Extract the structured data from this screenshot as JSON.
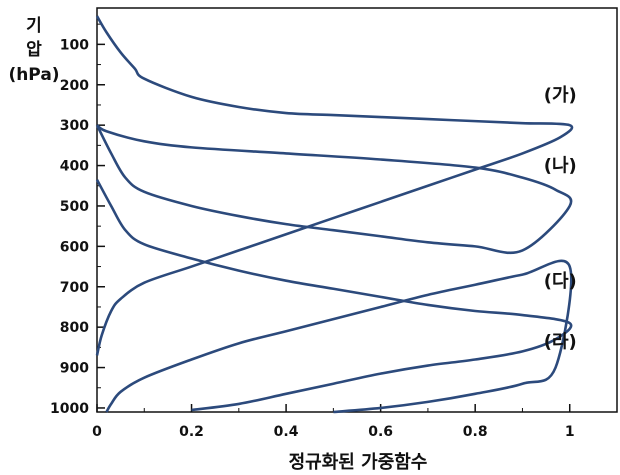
{
  "chart_data": {
    "type": "line",
    "title": "",
    "ylabel_lines": [
      "기",
      "압",
      "(hPa)"
    ],
    "xlabel": "정규화된 가중함수",
    "xlim": [
      0,
      1.1
    ],
    "ylim": [
      1010,
      10
    ],
    "xticks": [
      "0",
      "0.2",
      "0.4",
      "0.6",
      "0.8",
      "1"
    ],
    "xtick_values": [
      0,
      0.2,
      0.4,
      0.6,
      0.8,
      1
    ],
    "yticks": [
      "100",
      "200",
      "300",
      "400",
      "500",
      "600",
      "700",
      "800",
      "900",
      "1000"
    ],
    "ytick_values": [
      100,
      200,
      300,
      400,
      500,
      600,
      700,
      800,
      900,
      1000
    ],
    "grid": false,
    "series": [
      {
        "name": "(가)",
        "color": "#2c4a7c",
        "points": [
          [
            0,
            30
          ],
          [
            0.02,
            70
          ],
          [
            0.05,
            120
          ],
          [
            0.08,
            160
          ],
          [
            0.1,
            185
          ],
          [
            0.2,
            230
          ],
          [
            0.3,
            255
          ],
          [
            0.4,
            270
          ],
          [
            0.5,
            275
          ],
          [
            0.6,
            280
          ],
          [
            0.7,
            285
          ],
          [
            0.8,
            290
          ],
          [
            0.9,
            295
          ],
          [
            1.0,
            300
          ],
          [
            0.98,
            330
          ],
          [
            0.9,
            370
          ],
          [
            0.8,
            410
          ],
          [
            0.7,
            450
          ],
          [
            0.6,
            490
          ],
          [
            0.5,
            530
          ],
          [
            0.4,
            570
          ],
          [
            0.3,
            610
          ],
          [
            0.2,
            650
          ],
          [
            0.1,
            690
          ],
          [
            0.05,
            730
          ],
          [
            0.03,
            760
          ],
          [
            0.01,
            820
          ],
          [
            0,
            870
          ]
        ],
        "label_at": [
          0.98,
          240
        ]
      },
      {
        "name": "(나)",
        "color": "#2c4a7c",
        "points": [
          [
            0,
            300
          ],
          [
            0.03,
            370
          ],
          [
            0.06,
            430
          ],
          [
            0.1,
            465
          ],
          [
            0.2,
            500
          ],
          [
            0.3,
            525
          ],
          [
            0.4,
            545
          ],
          [
            0.5,
            560
          ],
          [
            0.6,
            575
          ],
          [
            0.7,
            590
          ],
          [
            0.8,
            600
          ],
          [
            0.9,
            610
          ],
          [
            1.0,
            500
          ],
          [
            0.97,
            460
          ],
          [
            0.9,
            430
          ],
          [
            0.8,
            405
          ],
          [
            0.6,
            385
          ],
          [
            0.4,
            370
          ],
          [
            0.2,
            355
          ],
          [
            0.1,
            340
          ],
          [
            0.02,
            315
          ],
          [
            0,
            300
          ]
        ],
        "label_at": [
          0.98,
          415
        ]
      },
      {
        "name": "(다)",
        "color": "#2c4a7c",
        "points": [
          [
            0,
            435
          ],
          [
            0.03,
            500
          ],
          [
            0.06,
            560
          ],
          [
            0.1,
            595
          ],
          [
            0.2,
            630
          ],
          [
            0.3,
            660
          ],
          [
            0.4,
            685
          ],
          [
            0.5,
            705
          ],
          [
            0.6,
            725
          ],
          [
            0.7,
            745
          ],
          [
            0.8,
            760
          ],
          [
            0.9,
            770
          ],
          [
            1.0,
            790
          ],
          [
            0.97,
            830
          ],
          [
            0.9,
            860
          ],
          [
            0.8,
            880
          ],
          [
            0.7,
            895
          ],
          [
            0.6,
            915
          ],
          [
            0.5,
            940
          ],
          [
            0.4,
            965
          ],
          [
            0.3,
            990
          ],
          [
            0.2,
            1005
          ]
        ],
        "label_at": [
          0.98,
          700
        ]
      },
      {
        "name": "(라)",
        "color": "#2c4a7c",
        "points": [
          [
            0.02,
            1010
          ],
          [
            0.03,
            990
          ],
          [
            0.05,
            960
          ],
          [
            0.1,
            925
          ],
          [
            0.2,
            880
          ],
          [
            0.3,
            840
          ],
          [
            0.4,
            810
          ],
          [
            0.5,
            780
          ],
          [
            0.6,
            750
          ],
          [
            0.7,
            720
          ],
          [
            0.8,
            695
          ],
          [
            0.9,
            670
          ],
          [
            1.0,
            650
          ],
          [
            0.97,
            900
          ],
          [
            0.9,
            940
          ],
          [
            0.8,
            965
          ],
          [
            0.7,
            985
          ],
          [
            0.6,
            1000
          ],
          [
            0.5,
            1010
          ]
        ],
        "label_at": [
          0.98,
          850
        ]
      }
    ]
  }
}
